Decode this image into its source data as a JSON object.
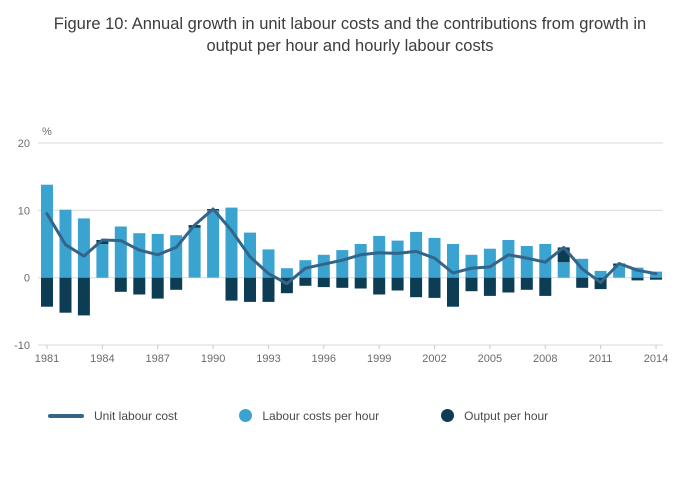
{
  "title": "Figure 10: Annual growth in unit labour costs and the contributions from growth in output per hour and hourly labour costs",
  "chart_data": {
    "type": "bar",
    "subtype": "stacked-bars-with-line-overlay",
    "title": "Figure 10: Annual growth in unit labour costs and the contributions from growth in output per hour and hourly labour costs",
    "ylabel": "%",
    "xlabel": "",
    "ylim": [
      -10,
      20
    ],
    "yticks": [
      20,
      10,
      0,
      -10
    ],
    "xticks": [
      1981,
      1984,
      1987,
      1990,
      1993,
      1996,
      1999,
      2002,
      2005,
      2008,
      2011,
      2014
    ],
    "grid": true,
    "legend_position": "bottom",
    "categories": [
      1981,
      1982,
      1983,
      1984,
      1985,
      1986,
      1987,
      1988,
      1989,
      1990,
      1991,
      1992,
      1993,
      1994,
      1995,
      1996,
      1997,
      1998,
      1999,
      2000,
      2001,
      2002,
      2003,
      2004,
      2005,
      2006,
      2007,
      2008,
      2009,
      2010,
      2011,
      2012,
      2013,
      2014
    ],
    "series": [
      {
        "name": "Labour costs per hour",
        "type": "bar",
        "color": "#3aa3cf",
        "values": [
          13.8,
          10.1,
          8.8,
          5.0,
          7.6,
          6.6,
          6.5,
          6.3,
          7.4,
          10.0,
          10.4,
          6.7,
          4.2,
          1.4,
          2.6,
          3.4,
          4.1,
          5.0,
          6.2,
          5.5,
          6.8,
          5.9,
          5.0,
          3.4,
          4.3,
          5.6,
          4.7,
          5.0,
          2.3,
          2.8,
          1.0,
          1.8,
          1.5,
          0.9
        ]
      },
      {
        "name": "Output per hour",
        "type": "bar",
        "color": "#0d3c55",
        "values": [
          -4.3,
          -5.2,
          -5.6,
          0.6,
          -2.1,
          -2.5,
          -3.1,
          -1.8,
          0.4,
          0.2,
          -3.4,
          -3.6,
          -3.6,
          -2.3,
          -1.2,
          -1.4,
          -1.5,
          -1.6,
          -2.5,
          -1.9,
          -2.9,
          -3.0,
          -4.3,
          -2.0,
          -2.7,
          -2.2,
          -1.8,
          -2.7,
          2.2,
          -1.5,
          -1.7,
          0.3,
          -0.4,
          -0.3
        ]
      },
      {
        "name": "Unit labour cost",
        "type": "line",
        "color": "#33658a",
        "values": [
          9.5,
          4.9,
          3.2,
          5.6,
          5.5,
          4.1,
          3.4,
          4.5,
          7.8,
          10.2,
          7.0,
          3.1,
          0.6,
          -0.9,
          1.4,
          2.0,
          2.6,
          3.4,
          3.7,
          3.6,
          3.9,
          2.9,
          0.7,
          1.4,
          1.6,
          3.4,
          2.9,
          2.3,
          4.5,
          1.3,
          -0.7,
          2.1,
          1.1,
          0.6
        ]
      }
    ]
  },
  "legend": {
    "items": [
      {
        "label": "Unit labour cost",
        "shape": "line",
        "color": "#33658a"
      },
      {
        "label": "Labour costs per hour",
        "shape": "circle",
        "color": "#3aa3cf"
      },
      {
        "label": "Output per hour",
        "shape": "circle",
        "color": "#0d3c55"
      }
    ]
  },
  "style": {
    "gridline_color": "#d9d9d9",
    "tick_text_color": "#6b6b6b",
    "title_color": "#3c3c3c"
  }
}
